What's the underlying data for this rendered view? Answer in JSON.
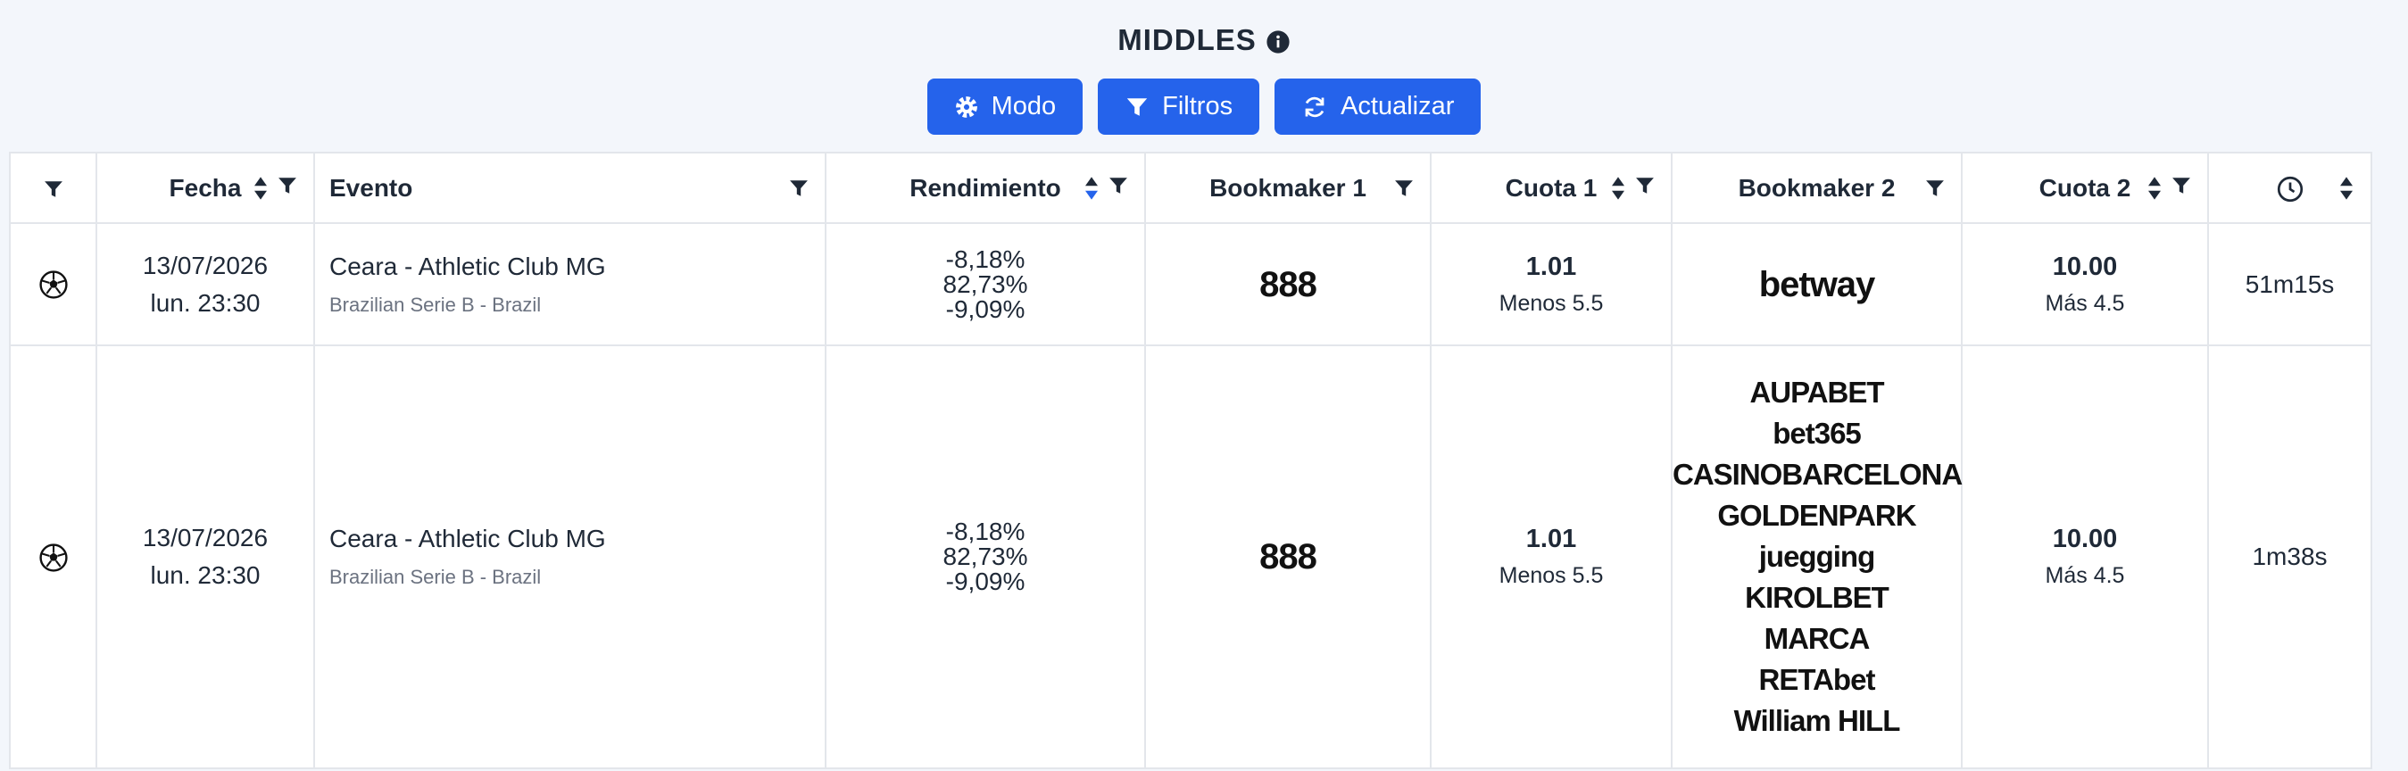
{
  "header": {
    "title": "MIDDLES"
  },
  "buttons": [
    "Modo",
    "Filtros",
    "Actualizar"
  ],
  "table": {
    "columns": {
      "fecha": "Fecha",
      "evento": "Evento",
      "rendimiento": "Rendimiento",
      "bookmaker1": "Bookmaker 1",
      "cuota1": "Cuota 1",
      "bookmaker2": "Bookmaker 2",
      "cuota2": "Cuota 2"
    },
    "rows": [
      {
        "fecha": [
          "13/07/2026",
          "lun. 23:30"
        ],
        "evento": "Ceara - Athletic Club MG",
        "liga": "Brazilian Serie B - Brazil",
        "rendimiento": [
          "-8,18%",
          "82,73%",
          "-9,09%"
        ],
        "bookmaker1": [
          "888"
        ],
        "cuota1": "1.01",
        "linea1": "Menos 5.5",
        "bookmaker2": [
          "betway"
        ],
        "cuota2": "10.00",
        "linea2": "Más 4.5",
        "tiempo": "51m15s"
      },
      {
        "fecha": [
          "13/07/2026",
          "lun. 23:30"
        ],
        "evento": "Ceara - Athletic Club MG",
        "liga": "Brazilian Serie B - Brazil",
        "rendimiento": [
          "-8,18%",
          "82,73%",
          "-9,09%"
        ],
        "bookmaker1": [
          "888"
        ],
        "cuota1": "1.01",
        "linea1": "Menos 5.5",
        "bookmaker2": [
          "AUPABET",
          "bet365",
          "CASINOBARCELONA",
          "GOLDENPARK",
          "juegging",
          "KIROLBET",
          "MARCA",
          "RETAbet",
          "William HILL"
        ],
        "cuota2": "10.00",
        "linea2": "Más 4.5",
        "tiempo": "1m38s"
      }
    ]
  }
}
